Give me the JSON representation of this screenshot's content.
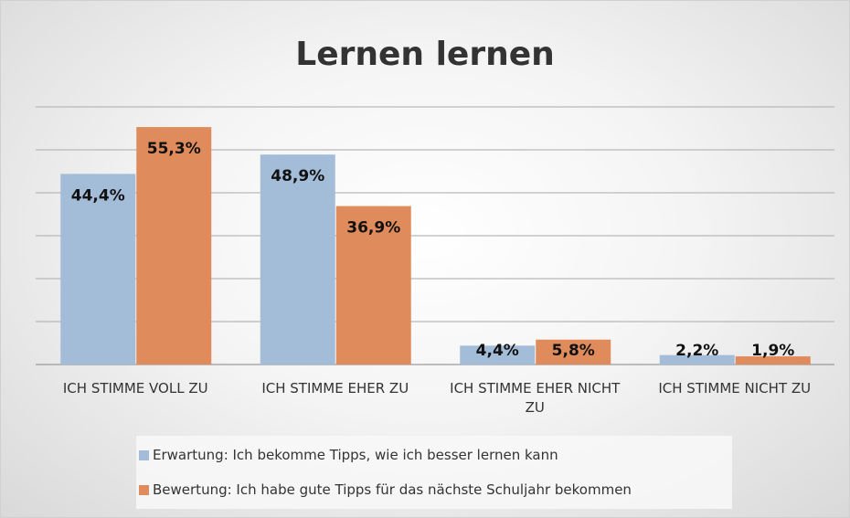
{
  "chart_data": {
    "type": "bar",
    "title": "Lernen lernen",
    "categories": [
      "ICH STIMME VOLL ZU",
      "ICH STIMME EHER ZU",
      "ICH STIMME EHER NICHT ZU",
      "ICH STIMME NICHT ZU"
    ],
    "series": [
      {
        "name": "Erwartung: Ich bekomme Tipps, wie ich besser lernen kann",
        "color": "#a3bdd8",
        "values": [
          44.4,
          48.9,
          4.4,
          2.2
        ],
        "value_labels": [
          "44,4%",
          "48,9%",
          "4,4%",
          "2,2%"
        ]
      },
      {
        "name": "Bewertung: Ich habe gute Tipps für das nächste Schuljahr bekommen",
        "color": "#e08b5c",
        "values": [
          55.3,
          36.9,
          5.8,
          1.9
        ],
        "value_labels": [
          "55,3%",
          "36,9%",
          "5,8%",
          "1,9%"
        ]
      }
    ],
    "ylim": [
      0,
      60
    ],
    "yticks": [
      0,
      10,
      20,
      30,
      40,
      50,
      60
    ],
    "grid": true,
    "legend": "bottom"
  }
}
